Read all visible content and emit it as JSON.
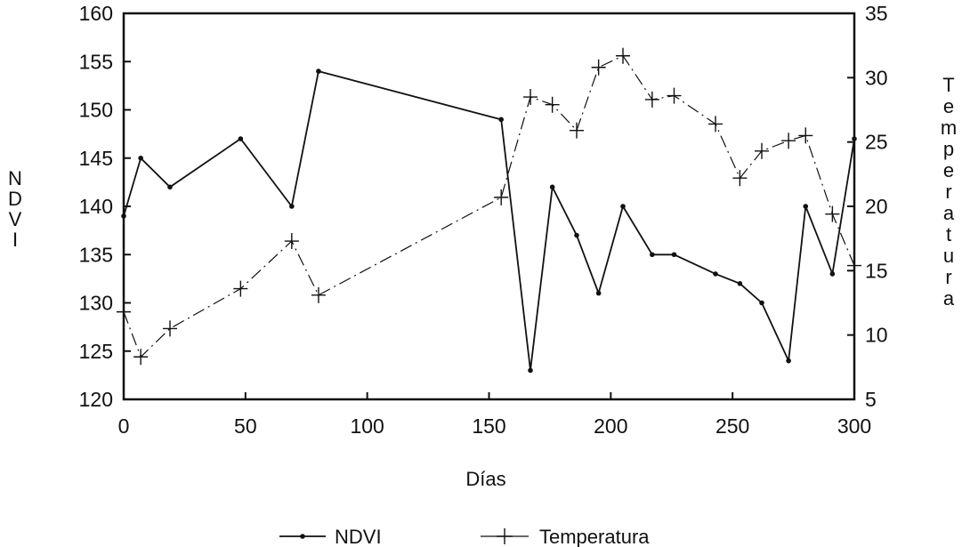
{
  "chart_data": {
    "type": "line",
    "xlabel": "Días",
    "ylabel_left": "NDVI",
    "ylabel_right": "Temperatura",
    "xlim": [
      0,
      300
    ],
    "ylim_left": [
      120,
      160
    ],
    "ylim_right": [
      5,
      35
    ],
    "x_ticks": [
      "0",
      "50",
      "100",
      "150",
      "200",
      "250",
      "300"
    ],
    "y_ticks_left": [
      "120",
      "125",
      "130",
      "135",
      "140",
      "145",
      "150",
      "155",
      "160"
    ],
    "y_ticks_right": [
      "5",
      "10",
      "15",
      "20",
      "25",
      "30",
      "35"
    ],
    "legend_position": "bottom-center",
    "grid": false,
    "series": [
      {
        "name": "NDVI",
        "axis": "left",
        "marker": "dot",
        "line_style": "solid",
        "color": "#111111",
        "x": [
          0,
          7,
          19,
          48,
          69,
          80,
          155,
          167,
          176,
          186,
          195,
          205,
          217,
          226,
          243,
          253,
          262,
          273,
          280,
          291,
          300
        ],
        "y": [
          139,
          145,
          142,
          147,
          140,
          154,
          149,
          123,
          142,
          137,
          131,
          140,
          135,
          135,
          133,
          132,
          130,
          124,
          140,
          133,
          147
        ]
      },
      {
        "name": "Temperatura",
        "axis": "right",
        "marker": "plus",
        "line_style": "dash-dot",
        "color": "#111111",
        "x": [
          0,
          7,
          19,
          48,
          69,
          80,
          155,
          167,
          176,
          186,
          195,
          205,
          217,
          226,
          243,
          253,
          262,
          273,
          280,
          291,
          300
        ],
        "y": [
          11.8,
          8.3,
          10.5,
          13.6,
          17.3,
          13.1,
          20.7,
          28.5,
          27.9,
          25.9,
          30.8,
          31.7,
          28.3,
          28.6,
          26.4,
          22.2,
          24.3,
          25.1,
          25.5,
          19.4,
          15.4
        ]
      }
    ]
  }
}
